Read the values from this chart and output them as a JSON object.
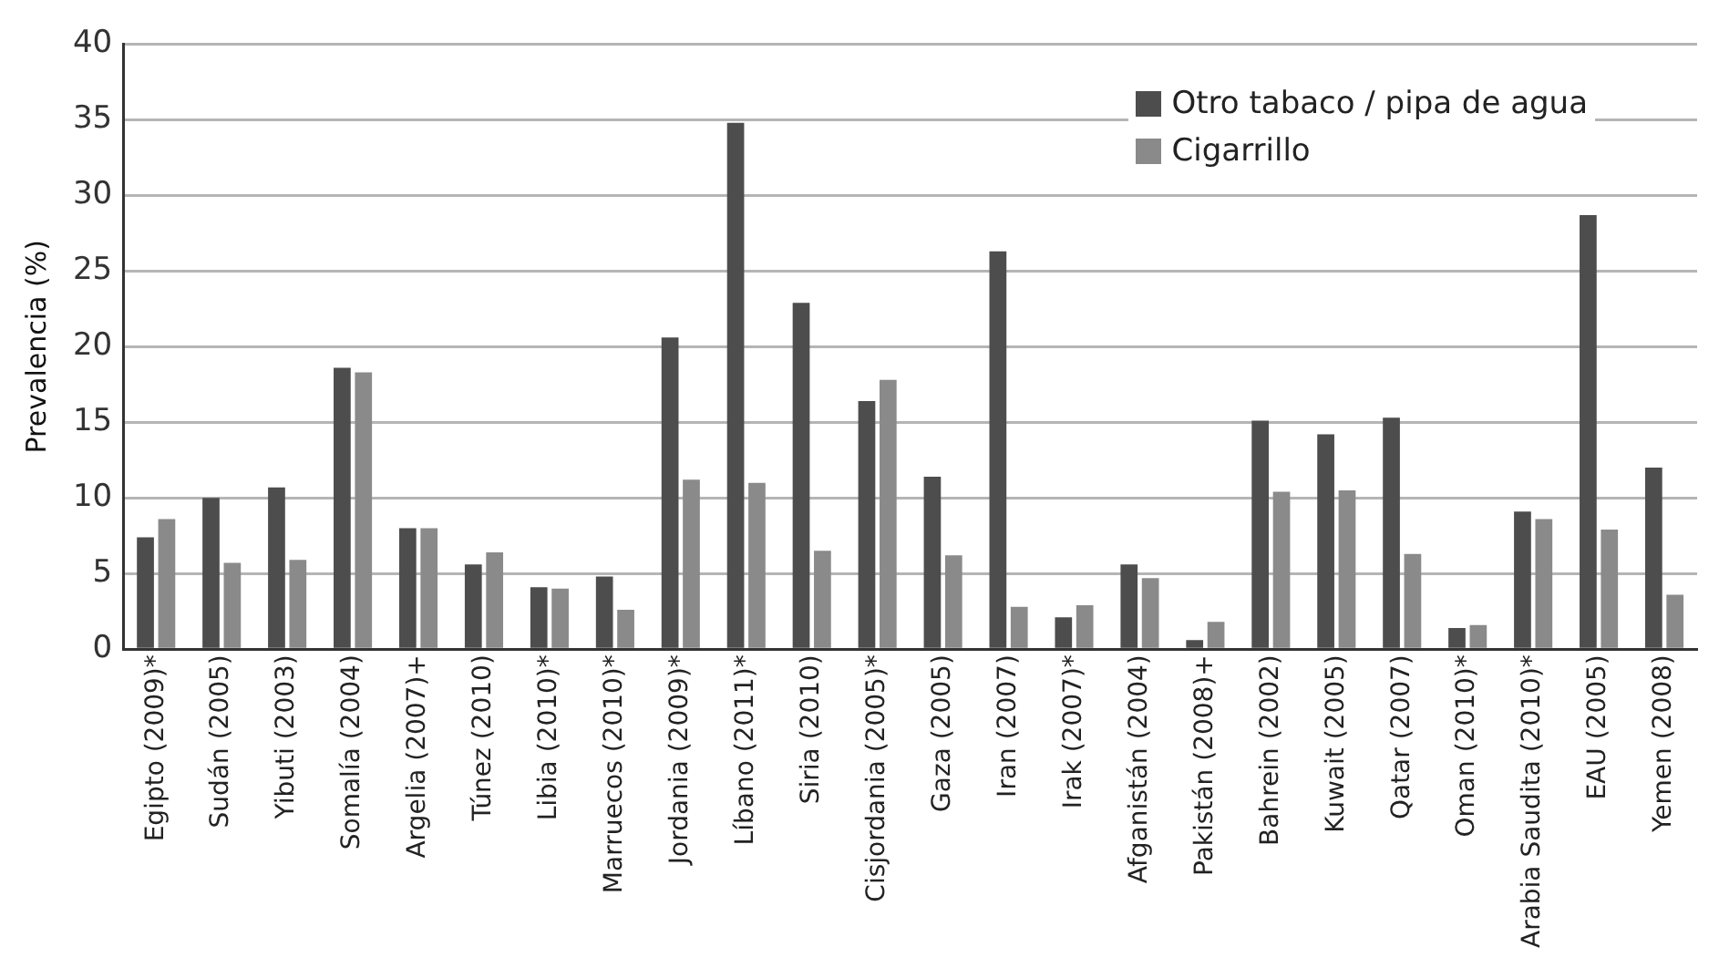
{
  "chart_data": {
    "type": "bar",
    "ylabel": "Prevalencia (%)",
    "categories": [
      "Egipto (2009)*",
      "Sudán (2005)",
      "Yibuti (2003)",
      "Somalía (2004)",
      "Argelia (2007)+",
      "Túnez (2010)",
      "Libia (2010)*",
      "Marruecos (2010)*",
      "Jordania (2009)*",
      "Líbano (2011)*",
      "Siria (2010)",
      "Cisjordania (2005)*",
      "Gaza (2005)",
      "Iran (2007)",
      "Irak (2007)*",
      "Afganistán (2004)",
      "Pakistán (2008)+",
      "Bahrein (2002)",
      "Kuwait (2005)",
      "Qatar (2007)",
      "Oman (2010)*",
      "Arabia Saudita (2010)*",
      "EAU (2005)",
      "Yemen (2008)"
    ],
    "series": [
      {
        "name": "Otro tabaco / pipa de agua",
        "color": "#4d4d4d",
        "values": [
          7.4,
          10,
          10.7,
          18.6,
          8,
          5.6,
          4.1,
          4.8,
          20.6,
          34.8,
          22.9,
          16.4,
          11.4,
          26.3,
          2.1,
          5.6,
          0.6,
          15.1,
          14.2,
          15.3,
          1.4,
          9.1,
          28.7,
          12
        ]
      },
      {
        "name": "Cigarrillo",
        "color": "#8a8a8a",
        "values": [
          8.6,
          5.7,
          5.9,
          18.3,
          8,
          6.4,
          4,
          2.6,
          11.2,
          11,
          6.5,
          17.8,
          6.2,
          2.8,
          2.9,
          4.7,
          1.8,
          10.4,
          10.5,
          6.3,
          1.6,
          8.6,
          7.9,
          3.6
        ]
      }
    ],
    "ylim": [
      0,
      40
    ],
    "yticks": [
      0,
      5,
      10,
      15,
      20,
      25,
      30,
      35,
      40
    ],
    "grid": "y",
    "legend": "top right"
  }
}
